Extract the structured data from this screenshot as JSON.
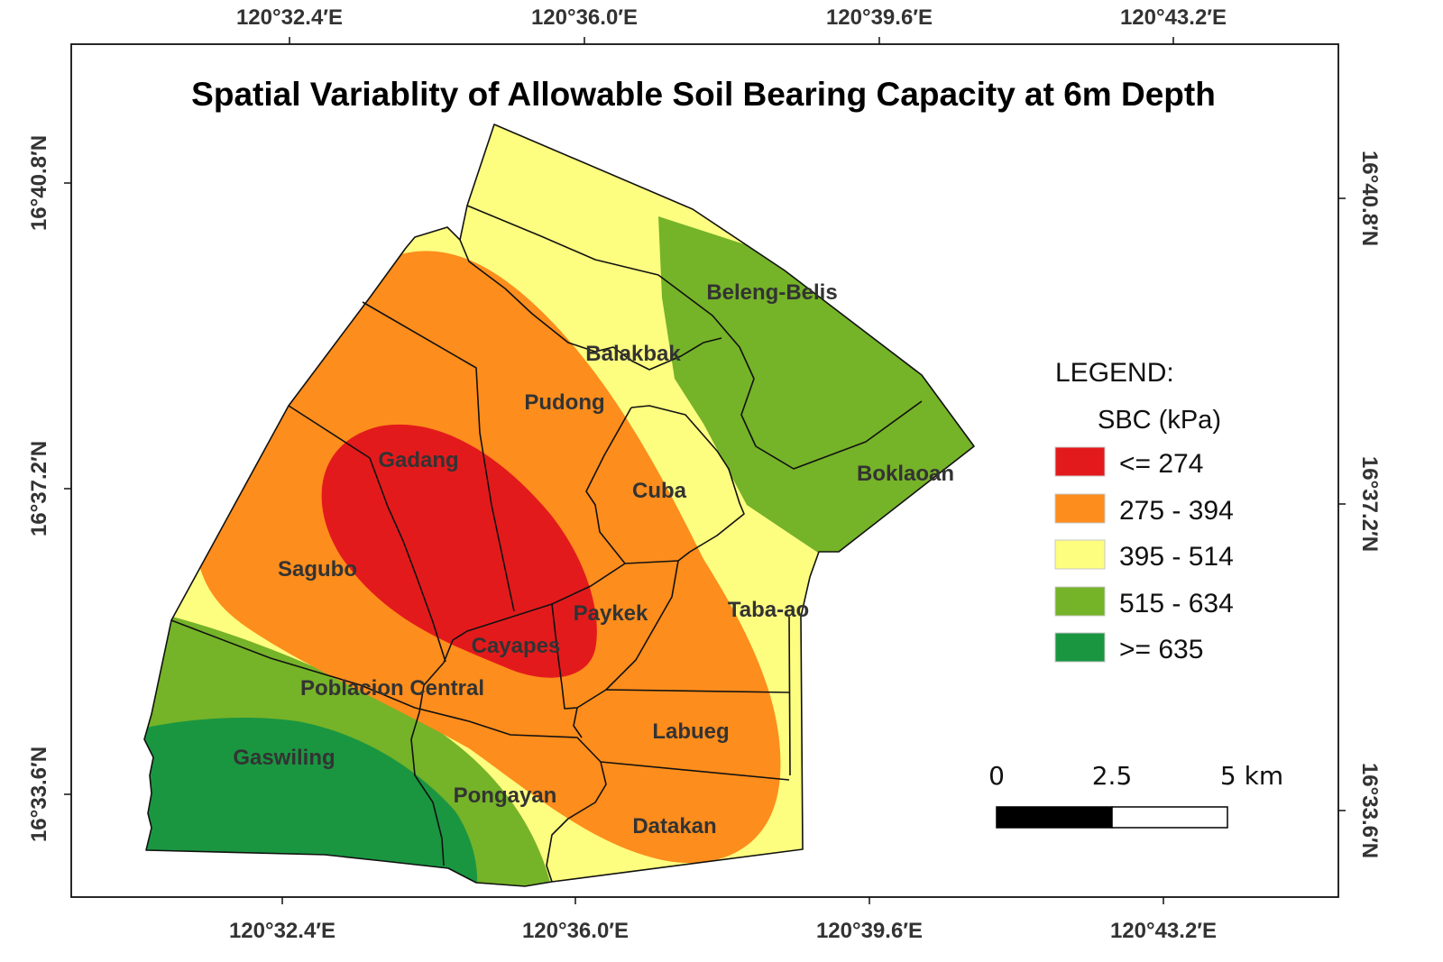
{
  "title": "Spatial Variablity of Allowable Soil Bearing Capacity at 6m Depth",
  "graticule": {
    "top": [
      "120°32.4′E",
      "120°36.0′E",
      "120°39.6′E",
      "120°43.2′E"
    ],
    "bottom": [
      "120°32.4′E",
      "120°36.0′E",
      "120°39.6′E",
      "120°43.2′E"
    ],
    "left": [
      "16°40.8′N",
      "16°37.2′N",
      "16°33.6′N"
    ],
    "right": [
      "16°40.8′N",
      "16°37.2′N",
      "16°33.6′N"
    ]
  },
  "barangays": [
    "Beleng-Belis",
    "Balakbak",
    "Pudong",
    "Gadang",
    "Cuba",
    "Boklaoan",
    "Sagubo",
    "Paykek",
    "Taba-ao",
    "Cayapes",
    "Poblacion Central",
    "Labueg",
    "Gaswiling",
    "Pongayan",
    "Datakan"
  ],
  "legend": {
    "title": "LEGEND:",
    "subtitle": "SBC (kPa)",
    "classes": [
      {
        "label": "<= 274",
        "color": "#e31a1c"
      },
      {
        "label": "275 - 394",
        "color": "#fd8d1c"
      },
      {
        "label": "395 - 514",
        "color": "#fdfd80"
      },
      {
        "label": "515 - 634",
        "color": "#75b328"
      },
      {
        "label": ">= 635",
        "color": "#1a9641"
      }
    ]
  },
  "scale_bar": {
    "labels": [
      "0",
      "2.5",
      "5 km"
    ]
  }
}
